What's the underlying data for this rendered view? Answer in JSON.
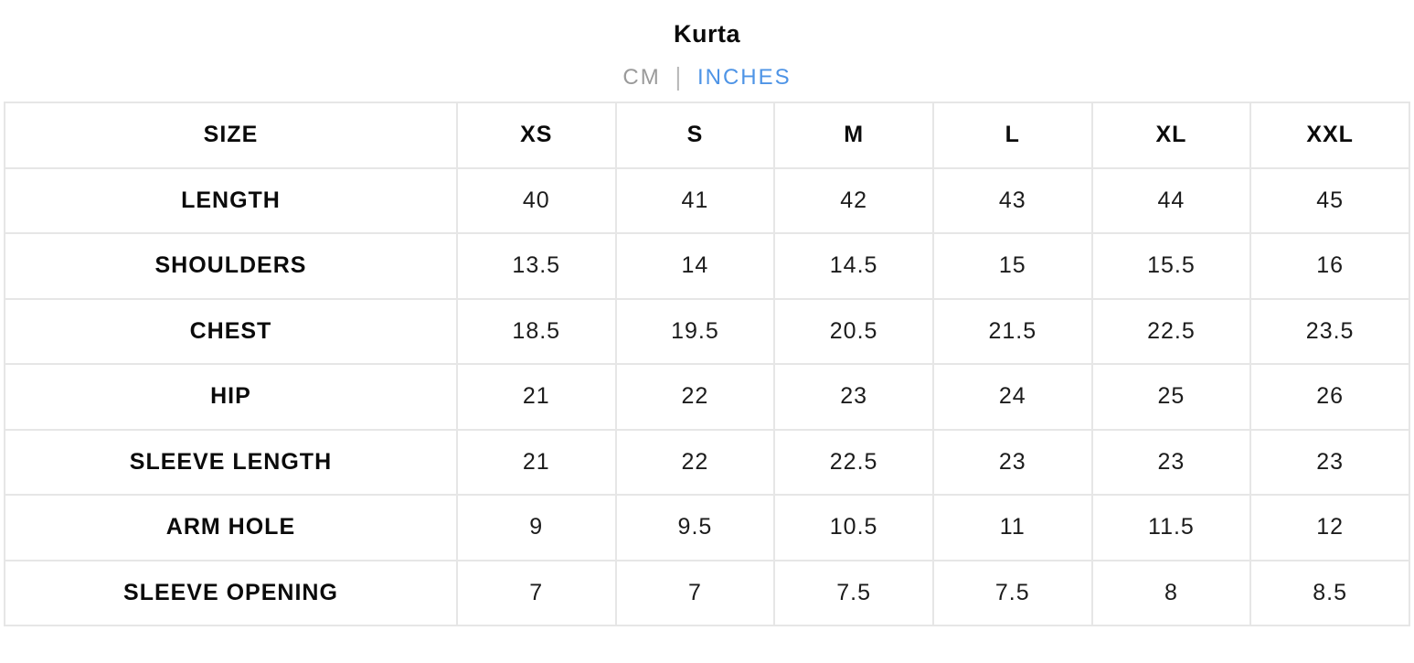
{
  "title": "Kurta",
  "unit_toggle": {
    "cm_label": "CM",
    "separator": "|",
    "inches_label": "INCHES",
    "active_unit": "INCHES",
    "active_color": "#4e94e6",
    "inactive_color": "#9a9a9a"
  },
  "table": {
    "columns": [
      "SIZE",
      "XS",
      "S",
      "M",
      "L",
      "XL",
      "XXL"
    ],
    "rows": [
      {
        "label": "LENGTH",
        "values": [
          "40",
          "41",
          "42",
          "43",
          "44",
          "45"
        ]
      },
      {
        "label": "SHOULDERS",
        "values": [
          "13.5",
          "14",
          "14.5",
          "15",
          "15.5",
          "16"
        ]
      },
      {
        "label": "CHEST",
        "values": [
          "18.5",
          "19.5",
          "20.5",
          "21.5",
          "22.5",
          "23.5"
        ]
      },
      {
        "label": "HIP",
        "values": [
          "21",
          "22",
          "23",
          "24",
          "25",
          "26"
        ]
      },
      {
        "label": "SLEEVE LENGTH",
        "values": [
          "21",
          "22",
          "22.5",
          "23",
          "23",
          "23"
        ]
      },
      {
        "label": "ARM HOLE",
        "values": [
          "9",
          "9.5",
          "10.5",
          "11",
          "11.5",
          "12"
        ]
      },
      {
        "label": "SLEEVE OPENING",
        "values": [
          "7",
          "7",
          "7.5",
          "7.5",
          "8",
          "8.5"
        ]
      }
    ]
  }
}
